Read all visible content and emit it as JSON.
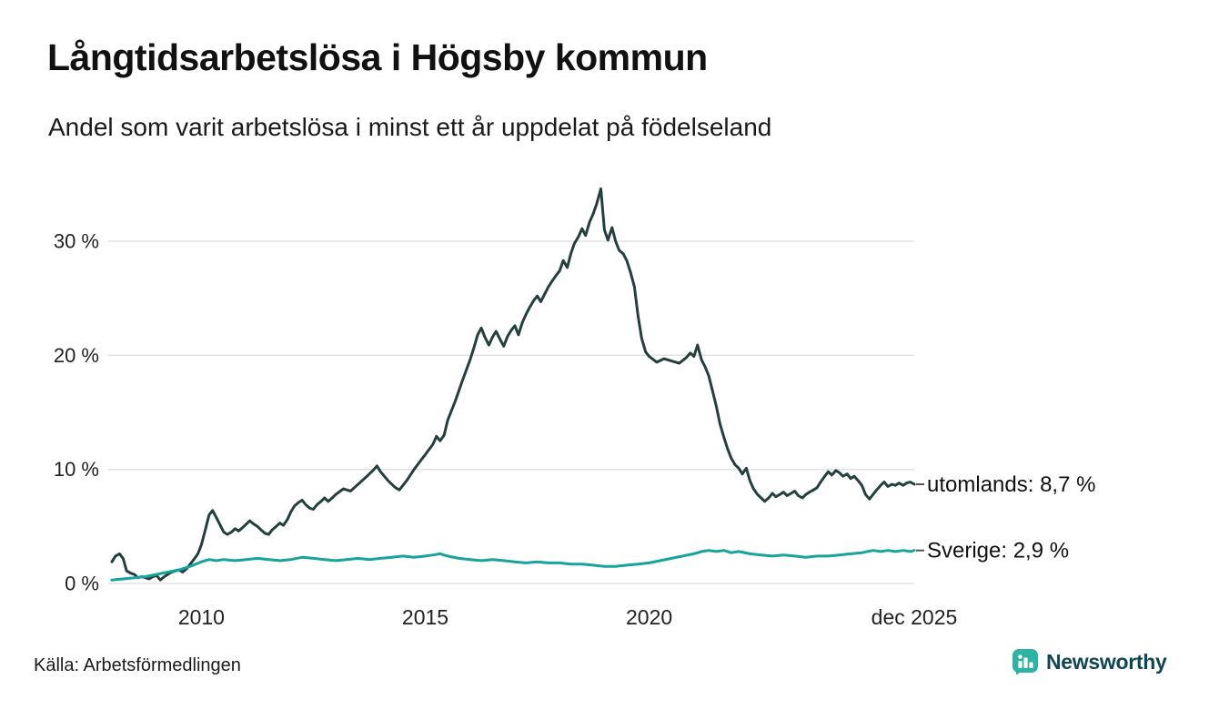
{
  "header": {
    "title": "Långtidsarbetslösa i Högsby kommun",
    "subtitle": "Andel som varit arbetslösa i minst ett år uppdelat på födelseland"
  },
  "footer": {
    "source": "Källa: Arbetsförmedlingen",
    "logo_text": "Newsworthy"
  },
  "colors": {
    "background": "#ffffff",
    "grid": "#e2e2e2",
    "axis_text": "#222222",
    "label_text": "#111111",
    "logo_icon": "#2cb3a3",
    "logo_text": "#0f4653"
  },
  "chart_data": {
    "type": "line",
    "title": "Långtidsarbetslösa i Högsby kommun",
    "subtitle": "Andel som varit arbetslösa i minst ett år uppdelat på födelseland",
    "source": "Källa: Arbetsförmedlingen",
    "grid": "horizontal",
    "legend_position": "end-of-line-labels",
    "x_axis": {
      "range": [
        2008.0,
        2025.92
      ],
      "ticks": [
        {
          "value": 2010,
          "label": "2010"
        },
        {
          "value": 2015,
          "label": "2015"
        },
        {
          "value": 2020,
          "label": "2020"
        },
        {
          "value": 2025.92,
          "label": "dec 2025"
        }
      ]
    },
    "y_axis": {
      "unit": "%",
      "range": [
        0,
        35.6
      ],
      "ticks": [
        {
          "value": 0,
          "label": "0 %"
        },
        {
          "value": 10,
          "label": "10 %"
        },
        {
          "value": 20,
          "label": "20 %"
        },
        {
          "value": 30,
          "label": "30 %"
        }
      ]
    },
    "series": [
      {
        "name": "utomlands",
        "end_label": "utomlands: 8,7 %",
        "end_value": 8.7,
        "color": "#24403e",
        "points": [
          [
            2008.0,
            1.9
          ],
          [
            2008.08,
            2.4
          ],
          [
            2008.17,
            2.6
          ],
          [
            2008.25,
            2.2
          ],
          [
            2008.33,
            1.1
          ],
          [
            2008.42,
            0.9
          ],
          [
            2008.5,
            0.8
          ],
          [
            2008.58,
            0.5
          ],
          [
            2008.67,
            0.6
          ],
          [
            2008.75,
            0.5
          ],
          [
            2008.83,
            0.4
          ],
          [
            2008.92,
            0.6
          ],
          [
            2009.0,
            0.7
          ],
          [
            2009.08,
            0.3
          ],
          [
            2009.17,
            0.6
          ],
          [
            2009.25,
            0.8
          ],
          [
            2009.33,
            1.0
          ],
          [
            2009.42,
            1.1
          ],
          [
            2009.5,
            1.2
          ],
          [
            2009.58,
            1.0
          ],
          [
            2009.67,
            1.3
          ],
          [
            2009.75,
            1.7
          ],
          [
            2009.83,
            2.1
          ],
          [
            2009.92,
            2.6
          ],
          [
            2010.0,
            3.4
          ],
          [
            2010.08,
            4.6
          ],
          [
            2010.17,
            6.0
          ],
          [
            2010.25,
            6.4
          ],
          [
            2010.33,
            5.8
          ],
          [
            2010.42,
            5.1
          ],
          [
            2010.5,
            4.5
          ],
          [
            2010.58,
            4.3
          ],
          [
            2010.67,
            4.5
          ],
          [
            2010.75,
            4.8
          ],
          [
            2010.83,
            4.6
          ],
          [
            2010.92,
            4.9
          ],
          [
            2011.0,
            5.2
          ],
          [
            2011.08,
            5.5
          ],
          [
            2011.17,
            5.2
          ],
          [
            2011.25,
            5.0
          ],
          [
            2011.33,
            4.7
          ],
          [
            2011.42,
            4.4
          ],
          [
            2011.5,
            4.3
          ],
          [
            2011.58,
            4.7
          ],
          [
            2011.67,
            5.0
          ],
          [
            2011.75,
            5.3
          ],
          [
            2011.83,
            5.1
          ],
          [
            2011.92,
            5.6
          ],
          [
            2012.0,
            6.3
          ],
          [
            2012.08,
            6.8
          ],
          [
            2012.17,
            7.1
          ],
          [
            2012.25,
            7.3
          ],
          [
            2012.33,
            6.9
          ],
          [
            2012.42,
            6.6
          ],
          [
            2012.5,
            6.5
          ],
          [
            2012.58,
            6.9
          ],
          [
            2012.67,
            7.2
          ],
          [
            2012.75,
            7.5
          ],
          [
            2012.83,
            7.2
          ],
          [
            2012.92,
            7.5
          ],
          [
            2013.0,
            7.8
          ],
          [
            2013.17,
            8.3
          ],
          [
            2013.33,
            8.1
          ],
          [
            2013.5,
            8.7
          ],
          [
            2013.67,
            9.3
          ],
          [
            2013.83,
            9.9
          ],
          [
            2013.92,
            10.3
          ],
          [
            2014.0,
            9.8
          ],
          [
            2014.17,
            9.0
          ],
          [
            2014.33,
            8.4
          ],
          [
            2014.42,
            8.2
          ],
          [
            2014.58,
            9.0
          ],
          [
            2014.75,
            10.0
          ],
          [
            2014.92,
            10.9
          ],
          [
            2015.0,
            11.3
          ],
          [
            2015.17,
            12.2
          ],
          [
            2015.25,
            12.9
          ],
          [
            2015.33,
            12.5
          ],
          [
            2015.42,
            13.0
          ],
          [
            2015.5,
            14.3
          ],
          [
            2015.67,
            16.0
          ],
          [
            2015.83,
            17.8
          ],
          [
            2016.0,
            19.6
          ],
          [
            2016.08,
            20.6
          ],
          [
            2016.17,
            21.8
          ],
          [
            2016.25,
            22.4
          ],
          [
            2016.33,
            21.6
          ],
          [
            2016.42,
            20.9
          ],
          [
            2016.5,
            21.6
          ],
          [
            2016.58,
            22.1
          ],
          [
            2016.67,
            21.4
          ],
          [
            2016.75,
            20.8
          ],
          [
            2016.83,
            21.6
          ],
          [
            2016.92,
            22.2
          ],
          [
            2017.0,
            22.6
          ],
          [
            2017.08,
            21.8
          ],
          [
            2017.17,
            22.9
          ],
          [
            2017.25,
            23.6
          ],
          [
            2017.33,
            24.2
          ],
          [
            2017.42,
            24.8
          ],
          [
            2017.5,
            25.2
          ],
          [
            2017.58,
            24.7
          ],
          [
            2017.67,
            25.4
          ],
          [
            2017.75,
            26.0
          ],
          [
            2017.83,
            26.5
          ],
          [
            2017.92,
            27.0
          ],
          [
            2018.0,
            27.4
          ],
          [
            2018.08,
            28.3
          ],
          [
            2018.17,
            27.7
          ],
          [
            2018.25,
            28.9
          ],
          [
            2018.33,
            29.8
          ],
          [
            2018.42,
            30.4
          ],
          [
            2018.5,
            31.1
          ],
          [
            2018.58,
            30.5
          ],
          [
            2018.67,
            31.7
          ],
          [
            2018.75,
            32.4
          ],
          [
            2018.83,
            33.3
          ],
          [
            2018.92,
            34.6
          ],
          [
            2019.0,
            31.0
          ],
          [
            2019.08,
            30.1
          ],
          [
            2019.17,
            31.2
          ],
          [
            2019.25,
            30.0
          ],
          [
            2019.33,
            29.2
          ],
          [
            2019.42,
            28.9
          ],
          [
            2019.5,
            28.3
          ],
          [
            2019.58,
            27.3
          ],
          [
            2019.67,
            26.0
          ],
          [
            2019.75,
            23.5
          ],
          [
            2019.83,
            21.5
          ],
          [
            2019.92,
            20.3
          ],
          [
            2020.0,
            19.9
          ],
          [
            2020.17,
            19.4
          ],
          [
            2020.33,
            19.7
          ],
          [
            2020.5,
            19.5
          ],
          [
            2020.67,
            19.3
          ],
          [
            2020.83,
            19.8
          ],
          [
            2020.92,
            20.2
          ],
          [
            2021.0,
            19.9
          ],
          [
            2021.08,
            20.9
          ],
          [
            2021.17,
            19.6
          ],
          [
            2021.25,
            19.0
          ],
          [
            2021.33,
            18.2
          ],
          [
            2021.42,
            16.8
          ],
          [
            2021.5,
            15.5
          ],
          [
            2021.58,
            14.0
          ],
          [
            2021.67,
            12.8
          ],
          [
            2021.75,
            11.8
          ],
          [
            2021.83,
            11.0
          ],
          [
            2021.92,
            10.4
          ],
          [
            2022.0,
            10.1
          ],
          [
            2022.08,
            9.6
          ],
          [
            2022.17,
            10.1
          ],
          [
            2022.25,
            9.0
          ],
          [
            2022.33,
            8.3
          ],
          [
            2022.42,
            7.8
          ],
          [
            2022.5,
            7.5
          ],
          [
            2022.58,
            7.2
          ],
          [
            2022.67,
            7.5
          ],
          [
            2022.75,
            7.9
          ],
          [
            2022.83,
            7.6
          ],
          [
            2022.92,
            7.8
          ],
          [
            2023.0,
            8.0
          ],
          [
            2023.08,
            7.7
          ],
          [
            2023.17,
            7.9
          ],
          [
            2023.25,
            8.1
          ],
          [
            2023.33,
            7.7
          ],
          [
            2023.42,
            7.5
          ],
          [
            2023.5,
            7.8
          ],
          [
            2023.58,
            8.0
          ],
          [
            2023.67,
            8.2
          ],
          [
            2023.75,
            8.4
          ],
          [
            2023.83,
            8.9
          ],
          [
            2023.92,
            9.4
          ],
          [
            2024.0,
            9.8
          ],
          [
            2024.08,
            9.5
          ],
          [
            2024.17,
            9.9
          ],
          [
            2024.25,
            9.7
          ],
          [
            2024.33,
            9.4
          ],
          [
            2024.42,
            9.6
          ],
          [
            2024.5,
            9.2
          ],
          [
            2024.58,
            9.4
          ],
          [
            2024.67,
            9.0
          ],
          [
            2024.75,
            8.6
          ],
          [
            2024.83,
            7.8
          ],
          [
            2024.92,
            7.4
          ],
          [
            2025.0,
            7.8
          ],
          [
            2025.08,
            8.2
          ],
          [
            2025.17,
            8.6
          ],
          [
            2025.25,
            8.9
          ],
          [
            2025.33,
            8.5
          ],
          [
            2025.42,
            8.7
          ],
          [
            2025.5,
            8.6
          ],
          [
            2025.58,
            8.8
          ],
          [
            2025.67,
            8.6
          ],
          [
            2025.75,
            8.8
          ],
          [
            2025.83,
            8.9
          ],
          [
            2025.92,
            8.7
          ]
        ]
      },
      {
        "name": "Sverige",
        "end_label": "Sverige: 2,9 %",
        "end_value": 2.9,
        "color": "#16a49c",
        "points": [
          [
            2008.0,
            0.3
          ],
          [
            2008.25,
            0.4
          ],
          [
            2008.5,
            0.5
          ],
          [
            2008.75,
            0.6
          ],
          [
            2009.0,
            0.8
          ],
          [
            2009.25,
            1.0
          ],
          [
            2009.5,
            1.2
          ],
          [
            2009.75,
            1.5
          ],
          [
            2010.0,
            1.9
          ],
          [
            2010.17,
            2.1
          ],
          [
            2010.33,
            2.0
          ],
          [
            2010.5,
            2.1
          ],
          [
            2010.75,
            2.0
          ],
          [
            2011.0,
            2.1
          ],
          [
            2011.25,
            2.2
          ],
          [
            2011.5,
            2.1
          ],
          [
            2011.75,
            2.0
          ],
          [
            2012.0,
            2.1
          ],
          [
            2012.25,
            2.3
          ],
          [
            2012.5,
            2.2
          ],
          [
            2012.75,
            2.1
          ],
          [
            2013.0,
            2.0
          ],
          [
            2013.25,
            2.1
          ],
          [
            2013.5,
            2.2
          ],
          [
            2013.75,
            2.1
          ],
          [
            2014.0,
            2.2
          ],
          [
            2014.25,
            2.3
          ],
          [
            2014.5,
            2.4
          ],
          [
            2014.75,
            2.3
          ],
          [
            2015.0,
            2.4
          ],
          [
            2015.17,
            2.5
          ],
          [
            2015.33,
            2.6
          ],
          [
            2015.5,
            2.4
          ],
          [
            2015.75,
            2.2
          ],
          [
            2016.0,
            2.1
          ],
          [
            2016.25,
            2.0
          ],
          [
            2016.5,
            2.1
          ],
          [
            2016.75,
            2.0
          ],
          [
            2017.0,
            1.9
          ],
          [
            2017.25,
            1.8
          ],
          [
            2017.5,
            1.9
          ],
          [
            2017.75,
            1.8
          ],
          [
            2018.0,
            1.8
          ],
          [
            2018.25,
            1.7
          ],
          [
            2018.5,
            1.7
          ],
          [
            2018.75,
            1.6
          ],
          [
            2019.0,
            1.5
          ],
          [
            2019.25,
            1.5
          ],
          [
            2019.5,
            1.6
          ],
          [
            2019.75,
            1.7
          ],
          [
            2020.0,
            1.8
          ],
          [
            2020.25,
            2.0
          ],
          [
            2020.5,
            2.2
          ],
          [
            2020.75,
            2.4
          ],
          [
            2021.0,
            2.6
          ],
          [
            2021.17,
            2.8
          ],
          [
            2021.33,
            2.9
          ],
          [
            2021.5,
            2.8
          ],
          [
            2021.67,
            2.9
          ],
          [
            2021.83,
            2.7
          ],
          [
            2022.0,
            2.8
          ],
          [
            2022.25,
            2.6
          ],
          [
            2022.5,
            2.5
          ],
          [
            2022.75,
            2.4
          ],
          [
            2023.0,
            2.5
          ],
          [
            2023.25,
            2.4
          ],
          [
            2023.5,
            2.3
          ],
          [
            2023.75,
            2.4
          ],
          [
            2024.0,
            2.4
          ],
          [
            2024.25,
            2.5
          ],
          [
            2024.5,
            2.6
          ],
          [
            2024.75,
            2.7
          ],
          [
            2025.0,
            2.9
          ],
          [
            2025.17,
            2.8
          ],
          [
            2025.33,
            2.9
          ],
          [
            2025.5,
            2.8
          ],
          [
            2025.67,
            2.9
          ],
          [
            2025.83,
            2.8
          ],
          [
            2025.92,
            2.9
          ]
        ]
      }
    ]
  }
}
